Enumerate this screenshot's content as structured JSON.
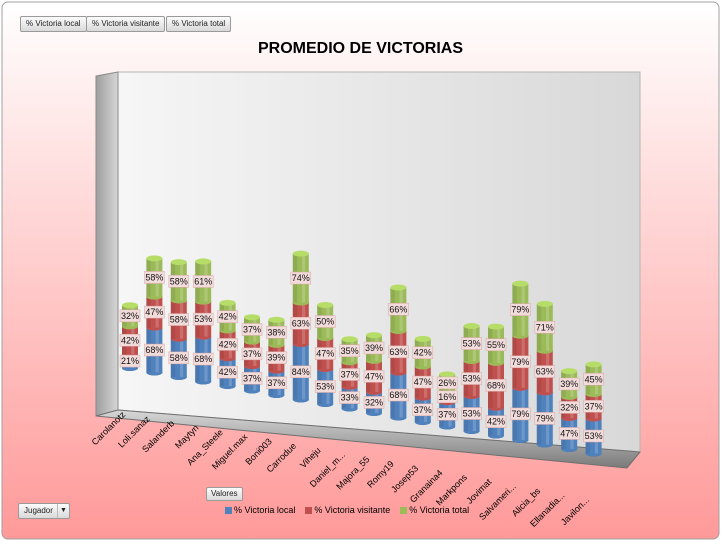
{
  "filters": {
    "local": "% Victoria local",
    "visitante": "% Victoria visitante",
    "total": "% Victoria total"
  },
  "valores_label": "Valores",
  "axis_field_label": "Jugador",
  "colors": {
    "local": "#4F81BD",
    "visitante": "#C0504D",
    "total": "#9BBB59",
    "label_bg": "#F2DCDB",
    "background_top": "#FFFFFF",
    "background_bottom": "#FF9999"
  },
  "chart_data": {
    "type": "bar",
    "stacked": true,
    "three_d": true,
    "title": "PROMEDIO DE VICTORIAS",
    "legend_position": "bottom",
    "categories": [
      "Carolanotz",
      "Loli.sanaz",
      "Salanderb",
      "Maytyn",
      "Ana_Steele",
      "Miguel.max",
      "Boni003",
      "Carrodue",
      "Viheju",
      "Daniel_m...",
      "Majora_55",
      "Romy19",
      "Josep53",
      "Granaina4",
      "Markpons",
      "Jovimat",
      "Salvameri...",
      "Alicia_bs",
      "Ellanadia...",
      "Javilon..."
    ],
    "series": [
      {
        "name": "% Victoria local",
        "values": [
          21,
          68,
          58,
          68,
          42,
          37,
          37,
          84,
          53,
          33,
          32,
          68,
          37,
          37,
          53,
          42,
          79,
          79,
          47,
          53
        ]
      },
      {
        "name": "% Victoria visitante",
        "values": [
          42,
          47,
          58,
          53,
          42,
          37,
          39,
          63,
          47,
          37,
          47,
          63,
          47,
          16,
          53,
          68,
          79,
          63,
          32,
          37
        ]
      },
      {
        "name": "% Victoria total",
        "values": [
          32,
          58,
          58,
          61,
          42,
          37,
          38,
          74,
          50,
          35,
          39,
          66,
          42,
          26,
          53,
          55,
          79,
          71,
          39,
          45
        ]
      }
    ],
    "value_format": "{v}%"
  }
}
